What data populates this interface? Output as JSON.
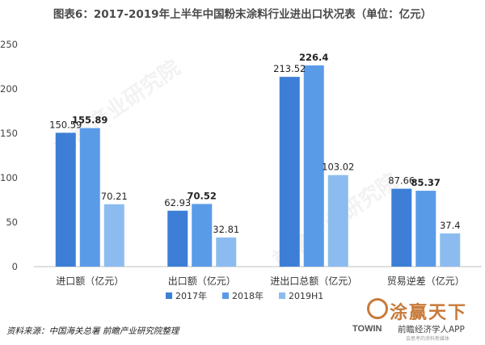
{
  "title": "图表6：2017-2019年上半年中国粉末涂料行业进出口状况表（单位：亿元）",
  "source": "资料来源：中国海关总署  前瞻产业研究院整理",
  "watermark": "前瞻产业研究院",
  "logo": {
    "brand": "涂赢天下",
    "towin": "TOWIN",
    "app": "前瞻经济学人APP",
    "tagline": "会思考的涂料新媒体",
    "color": "#c97a3a"
  },
  "chart_data": {
    "type": "bar",
    "categories": [
      "进口额（亿元）",
      "出口额（亿元）",
      "进出口总额（亿元）",
      "贸易逆差（亿元）"
    ],
    "series": [
      {
        "name": "2017年",
        "color": "#3d7fd6",
        "values": [
          150.59,
          62.93,
          213.52,
          87.66
        ],
        "labels": [
          "150.59",
          "62.93",
          "213.52",
          "87.66"
        ]
      },
      {
        "name": "2018年",
        "color": "#5a9be8",
        "values": [
          155.89,
          70.52,
          226.4,
          85.37
        ],
        "labels": [
          "155.89",
          "70.52",
          "226.4",
          "85.37"
        ]
      },
      {
        "name": "2019H1",
        "color": "#8cbcef",
        "values": [
          70.21,
          32.81,
          103.02,
          37.4
        ],
        "labels": [
          "70.21",
          "32.81",
          "103.02",
          "37.4"
        ]
      }
    ],
    "ylim": [
      0,
      250
    ],
    "yticks": [
      0,
      50,
      100,
      150,
      200,
      250
    ],
    "ytick_labels": [
      "0",
      "50",
      "100",
      "150",
      "200",
      "250"
    ],
    "grid": false,
    "legend_position": "bottom"
  }
}
